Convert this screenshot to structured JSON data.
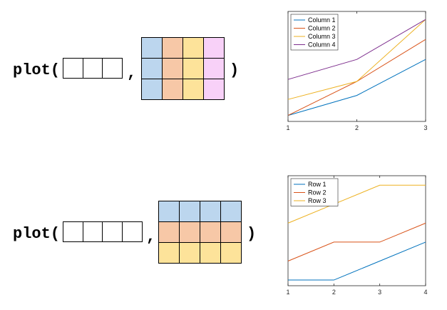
{
  "top": {
    "code_open": "plot(",
    "comma": ",",
    "code_close": ")",
    "vector_cells": 3,
    "matrix_rows": 3,
    "matrix_cols": 4,
    "matrix_fill": "column",
    "matrix_colors": [
      "#bcd6ee",
      "#f7c8a7",
      "#fde39a",
      "#f8d1f8"
    ]
  },
  "bottom": {
    "code_open": "plot(",
    "comma": ",",
    "code_close": ")",
    "vector_cells": 4,
    "matrix_rows": 3,
    "matrix_cols": 4,
    "matrix_fill": "row",
    "matrix_colors": [
      "#bcd6ee",
      "#f7c8a7",
      "#fde39a"
    ]
  },
  "chart_data": [
    {
      "type": "line",
      "x": [
        1,
        2,
        3
      ],
      "xticks": [
        "1",
        "2",
        "3"
      ],
      "xlim": [
        1,
        3
      ],
      "ylim": [
        0,
        5.5
      ],
      "legend_position": "top-left",
      "series": [
        {
          "name": "Column 1",
          "color": "#0072bd",
          "values": [
            0.3,
            1.3,
            3.1
          ]
        },
        {
          "name": "Column 2",
          "color": "#d95319",
          "values": [
            0.3,
            2.0,
            4.1
          ]
        },
        {
          "name": "Column 3",
          "color": "#edb120",
          "values": [
            1.1,
            2.0,
            5.1
          ]
        },
        {
          "name": "Column 4",
          "color": "#7e2f8e",
          "values": [
            2.1,
            3.1,
            5.1
          ]
        }
      ]
    },
    {
      "type": "line",
      "x": [
        1,
        2,
        3,
        4
      ],
      "xticks": [
        "1",
        "2",
        "3",
        "4"
      ],
      "xlim": [
        1,
        4
      ],
      "ylim": [
        0,
        5.8
      ],
      "legend_position": "top-left",
      "series": [
        {
          "name": "Row 1",
          "color": "#0072bd",
          "values": [
            0.3,
            0.3,
            1.3,
            2.3
          ]
        },
        {
          "name": "Row 2",
          "color": "#d95319",
          "values": [
            1.3,
            2.3,
            2.3,
            3.3
          ]
        },
        {
          "name": "Row 3",
          "color": "#edb120",
          "values": [
            3.3,
            4.3,
            5.3,
            5.3
          ]
        }
      ]
    }
  ]
}
